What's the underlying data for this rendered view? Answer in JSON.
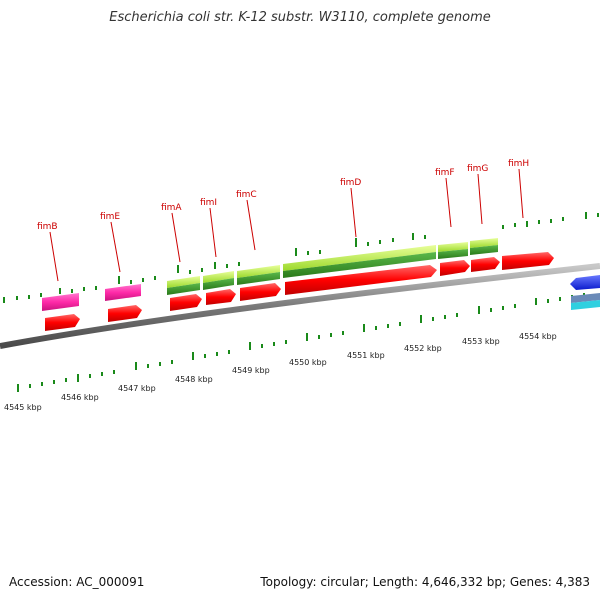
{
  "title": "Escherichia coli str. K-12 substr. W3110, complete genome",
  "footer": {
    "accession": "Accession: AC_000091",
    "topology": "Topology: circular; Length: 4,646,332 bp; Genes: 4,383"
  },
  "colors": {
    "backbone": "#8a8a8a",
    "gene_label": "#cc0000",
    "cds": "#ff0000",
    "gene_magenta": "#ff2aa8",
    "gene_green": "#b8f040",
    "gene_darkgreen": "#3a9a2a",
    "tick": "#1a8a1a",
    "feature_blue": "#1a3aff",
    "feature_cyan": "#30d0e0"
  },
  "scale_labels": [
    "4545 kbp",
    "4546 kbp",
    "4547 kbp",
    "4548 kbp",
    "4549 kbp",
    "4550 kbp",
    "4551 kbp",
    "4552 kbp",
    "4553 kbp",
    "4554 kbp"
  ],
  "genes": [
    "fimB",
    "fimE",
    "fimA",
    "fimI",
    "fimC",
    "fimD",
    "fimF",
    "fimG",
    "fimH"
  ]
}
